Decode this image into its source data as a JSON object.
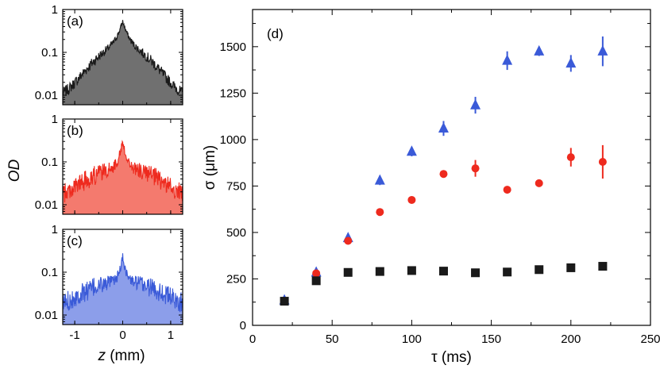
{
  "chart_data": [
    {
      "id": "a",
      "type": "area",
      "panel_label": "(a)",
      "color": "#1a1a1a",
      "fill": "#707070",
      "xlim": [
        -1.25,
        1.25
      ],
      "ylim": [
        0.006,
        1.0
      ],
      "yscale": "log",
      "x_ticks": [
        -1,
        0,
        1
      ],
      "y_ticks": [
        {
          "value": 0.01,
          "label": "0.01"
        },
        {
          "value": 0.1,
          "label": "0.1"
        },
        {
          "value": 1,
          "label": "1"
        }
      ],
      "peak": 0.52,
      "core_width_mm": 0.09,
      "wing_amplitude": 0.13,
      "wing_width_mm": 0.45,
      "baseline": 0.0085,
      "noise": 0.3
    },
    {
      "id": "b",
      "type": "area",
      "panel_label": "(b)",
      "color": "#ee2a1e",
      "fill": "#f47a6e",
      "xlim": [
        -1.25,
        1.25
      ],
      "ylim": [
        0.006,
        1.0
      ],
      "yscale": "log",
      "x_ticks": [
        -1,
        0,
        1
      ],
      "y_ticks": [
        {
          "value": 0.01,
          "label": "0.01"
        },
        {
          "value": 0.1,
          "label": "0.1"
        },
        {
          "value": 1,
          "label": "1"
        }
      ],
      "peak": 0.29,
      "core_width_mm": 0.06,
      "wing_amplitude": 0.06,
      "wing_width_mm": 0.6,
      "baseline": 0.011,
      "noise": 0.55
    },
    {
      "id": "c",
      "type": "area",
      "panel_label": "(c)",
      "color": "#3a5ad8",
      "fill": "#8c9eea",
      "xlim": [
        -1.25,
        1.25
      ],
      "ylim": [
        0.006,
        1.0
      ],
      "yscale": "log",
      "x_ticks": [
        -1,
        0,
        1
      ],
      "y_ticks": [
        {
          "value": 0.01,
          "label": "0.01"
        },
        {
          "value": 0.1,
          "label": "0.1"
        },
        {
          "value": 1,
          "label": "1"
        }
      ],
      "peak": 0.22,
      "core_width_mm": 0.05,
      "wing_amplitude": 0.05,
      "wing_width_mm": 0.65,
      "baseline": 0.011,
      "noise": 0.55
    },
    {
      "id": "d",
      "type": "scatter",
      "panel_label": "(d)",
      "xlabel": "τ (ms)",
      "ylabel": "σ (μm)",
      "xlim": [
        0,
        250
      ],
      "ylim": [
        0,
        1700
      ],
      "x_ticks": [
        0,
        50,
        100,
        150,
        200,
        250
      ],
      "y_ticks": [
        0,
        250,
        500,
        750,
        1000,
        1250,
        1500
      ],
      "series": [
        {
          "name": "blue triangles",
          "marker": "triangle",
          "color": "#3a5ad8",
          "x": [
            20,
            40,
            60,
            80,
            100,
            120,
            140,
            160,
            180,
            200,
            220
          ],
          "y": [
            135,
            285,
            470,
            780,
            935,
            1060,
            1185,
            1425,
            1475,
            1410,
            1475
          ],
          "err": [
            15,
            20,
            22,
            25,
            25,
            40,
            45,
            50,
            25,
            45,
            80
          ]
        },
        {
          "name": "red circles",
          "marker": "circle",
          "color": "#ee2a1e",
          "x": [
            20,
            40,
            60,
            80,
            100,
            120,
            140,
            160,
            180,
            200,
            220
          ],
          "y": [
            130,
            280,
            455,
            610,
            675,
            815,
            845,
            730,
            765,
            905,
            880
          ],
          "err": [
            10,
            12,
            15,
            10,
            10,
            15,
            45,
            20,
            20,
            50,
            90
          ]
        },
        {
          "name": "black squares",
          "marker": "square",
          "color": "#1a1a1a",
          "x": [
            20,
            40,
            60,
            80,
            100,
            120,
            140,
            160,
            180,
            200,
            220
          ],
          "y": [
            130,
            240,
            285,
            290,
            295,
            292,
            283,
            287,
            300,
            310,
            318
          ],
          "err": [
            5,
            5,
            5,
            5,
            5,
            5,
            5,
            5,
            5,
            5,
            5
          ]
        }
      ]
    }
  ],
  "labels": {
    "shared_ylabel": "OD",
    "shared_xlabel_var": "z",
    "shared_xlabel_unit": " (mm)"
  }
}
